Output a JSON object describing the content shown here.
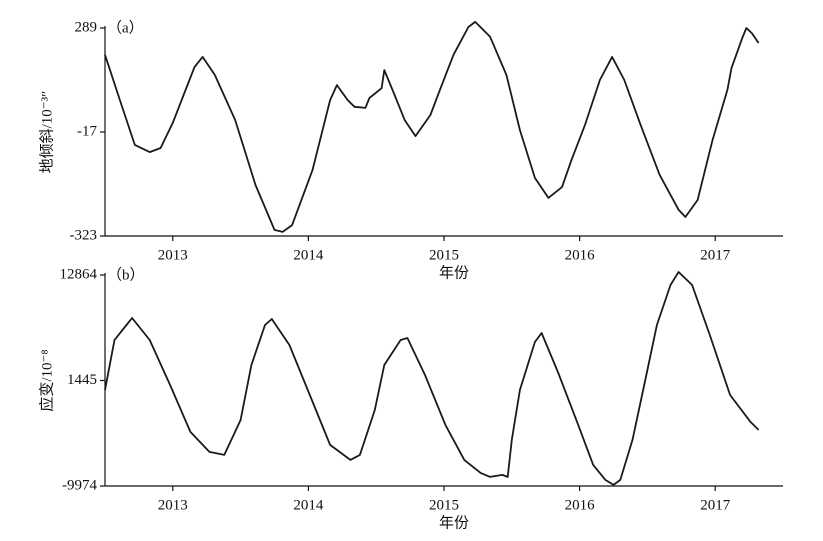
{
  "chart_data": [
    {
      "type": "line",
      "annotation": "（a）",
      "y_label": "地倾斜/10⁻³″",
      "x_label": "年份",
      "color": "#1a1a1a",
      "xlim": [
        2012.5,
        2017.5
      ],
      "xticks": [
        2013,
        2014,
        2015,
        2016,
        2017
      ],
      "ylim": [
        -323,
        289
      ],
      "yticks": [
        -323,
        -17,
        289
      ],
      "x": [
        2012.5,
        2012.61,
        2012.72,
        2012.83,
        2012.91,
        2013.0,
        2013.08,
        2013.16,
        2013.22,
        2013.31,
        2013.46,
        2013.61,
        2013.75,
        2013.81,
        2013.88,
        2014.03,
        2014.16,
        2014.21,
        2014.29,
        2014.34,
        2014.42,
        2014.45,
        2014.54,
        2014.56,
        2014.62,
        2014.71,
        2014.79,
        2014.9,
        2014.97,
        2015.07,
        2015.18,
        2015.23,
        2015.34,
        2015.46,
        2015.56,
        2015.67,
        2015.77,
        2015.87,
        2015.94,
        2016.04,
        2016.15,
        2016.24,
        2016.33,
        2016.45,
        2016.59,
        2016.73,
        2016.78,
        2016.87,
        2016.98,
        2017.09,
        2017.12,
        2017.2,
        2017.23,
        2017.27,
        2017.32
      ],
      "values": [
        210,
        77,
        -55,
        -76,
        -64,
        10,
        92,
        174,
        204,
        151,
        18,
        -173,
        -305,
        -311,
        -291,
        -129,
        77,
        121,
        77,
        57,
        54,
        83,
        112,
        165,
        107,
        18,
        -29,
        33,
        107,
        210,
        292,
        307,
        263,
        151,
        -11,
        -152,
        -211,
        -179,
        -99,
        4,
        136,
        204,
        136,
        4,
        -143,
        -246,
        -267,
        -217,
        -41,
        107,
        171,
        260,
        289,
        274,
        245
      ]
    },
    {
      "type": "line",
      "annotation": "（b）",
      "y_label": "应变/10⁻⁸",
      "x_label": "年份",
      "color": "#1a1a1a",
      "xlim": [
        2012.5,
        2017.5
      ],
      "xticks": [
        2013,
        2014,
        2015,
        2016,
        2017
      ],
      "ylim": [
        -9974,
        12864
      ],
      "yticks": [
        -9974,
        1445,
        12864
      ],
      "x": [
        2012.5,
        2012.57,
        2012.7,
        2012.83,
        2012.98,
        2013.13,
        2013.27,
        2013.38,
        2013.5,
        2013.58,
        2013.68,
        2013.73,
        2013.86,
        2014.01,
        2014.16,
        2014.31,
        2014.38,
        2014.49,
        2014.56,
        2014.68,
        2014.73,
        2014.86,
        2015.01,
        2015.15,
        2015.27,
        2015.34,
        2015.43,
        2015.47,
        2015.5,
        2015.56,
        2015.67,
        2015.72,
        2015.84,
        2015.99,
        2016.1,
        2016.19,
        2016.25,
        2016.3,
        2016.39,
        2016.5,
        2016.57,
        2016.67,
        2016.73,
        2016.83,
        2016.96,
        2017.11,
        2017.26,
        2017.32
      ],
      "values": [
        421,
        5831,
        8211,
        5831,
        962,
        -4123,
        -6287,
        -6612,
        -2825,
        3126,
        7454,
        8103,
        5290,
        -120,
        -5530,
        -7153,
        -6612,
        -1743,
        3126,
        5831,
        6047,
        2044,
        -3366,
        -7153,
        -8560,
        -8992,
        -8776,
        -8992,
        -4989,
        421,
        5615,
        6588,
        2369,
        -3366,
        -7694,
        -9317,
        -9858,
        -9317,
        -4989,
        2585,
        7454,
        11782,
        13189,
        11782,
        6372,
        -120,
        -3041,
        -3907
      ]
    }
  ]
}
